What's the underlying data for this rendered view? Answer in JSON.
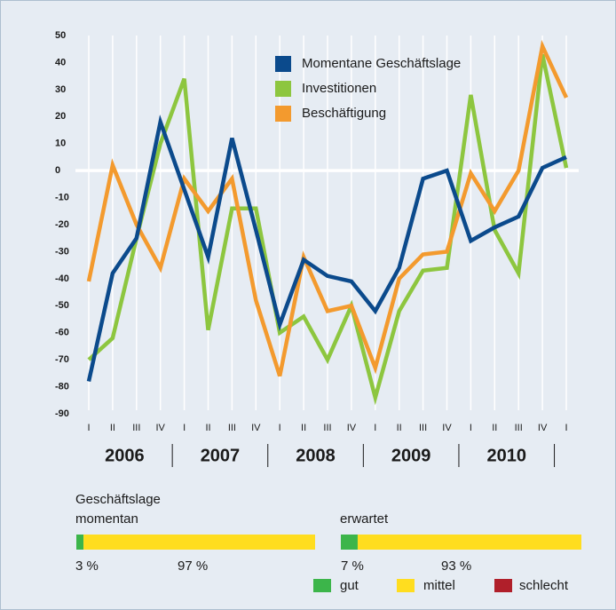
{
  "chart_data": [
    {
      "type": "line",
      "categories": [
        "I",
        "II",
        "III",
        "IV",
        "I",
        "II",
        "III",
        "IV",
        "I",
        "II",
        "III",
        "IV",
        "I",
        "II",
        "III",
        "IV",
        "I",
        "II",
        "III",
        "IV",
        "I"
      ],
      "year_labels": [
        "2006",
        "2007",
        "2008",
        "2009",
        "2010"
      ],
      "series": [
        {
          "name": "Momentane Geschäftslage",
          "color": "#0b4a8c",
          "values": [
            -78,
            -38,
            -25,
            18,
            -7,
            -32,
            12,
            -22,
            -57,
            -33,
            -39,
            -41,
            -52,
            -36,
            -3,
            0,
            -26,
            -21,
            -17,
            1,
            5
          ]
        },
        {
          "name": "Investitionen",
          "color": "#8dc63f",
          "values": [
            -70,
            -62,
            -25,
            10,
            34,
            -59,
            -14,
            -14,
            -60,
            -54,
            -70,
            -50,
            -84,
            -52,
            -37,
            -36,
            28,
            -22,
            -38,
            43,
            1
          ]
        },
        {
          "name": "Beschäftigung",
          "color": "#f39a2e",
          "values": [
            -41,
            2,
            -20,
            -36,
            -3,
            -15,
            -3,
            -48,
            -76,
            -32,
            -52,
            -50,
            -73,
            -40,
            -31,
            -30,
            -1,
            -15,
            0,
            46,
            27
          ]
        }
      ],
      "ylim": [
        -90,
        50
      ],
      "yticks": [
        50,
        40,
        30,
        20,
        10,
        0,
        -10,
        -20,
        -30,
        -40,
        -50,
        -60,
        -70,
        -80,
        -90
      ],
      "grid": true,
      "zero_line": true
    },
    {
      "type": "stacked_bar",
      "title": "Geschäftslage",
      "categories": [
        "momentan",
        "erwartet"
      ],
      "series": [
        {
          "name": "gut",
          "color": "#3cb54a",
          "values": [
            3,
            7
          ],
          "value_labels": [
            "3 %",
            "7 %"
          ]
        },
        {
          "name": "mittel",
          "color": "#ffdd1f",
          "values": [
            97,
            93
          ],
          "value_labels": [
            "97 %",
            "93 %"
          ]
        },
        {
          "name": "schlecht",
          "color": "#b01f2a",
          "values": [
            0,
            0
          ]
        }
      ],
      "xlim": [
        0,
        100
      ]
    }
  ]
}
